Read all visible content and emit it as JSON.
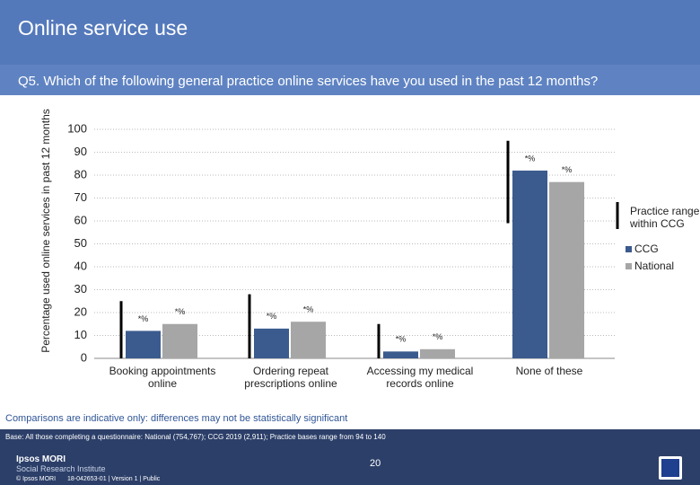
{
  "header": {
    "title": "Online service use"
  },
  "chart_data": {
    "type": "bar",
    "title": "Q5. Which of the following general practice online services have you used in the past 12 months?",
    "y_label": "Percentage used online services in past 12 months",
    "categories": [
      "Booking appointments online",
      "Ordering repeat prescriptions online",
      "Accessing my medical records online",
      "None of these"
    ],
    "series": [
      {
        "name": "CCG",
        "color": "#3b5b8e",
        "values": [
          12,
          13,
          3,
          82
        ],
        "value_labels": [
          "*%",
          "*%",
          "*%",
          "*%"
        ]
      },
      {
        "name": "National",
        "color": "#a6a6a6",
        "values": [
          15,
          16,
          4,
          77
        ],
        "value_labels": [
          "*%",
          "*%",
          "*%",
          "*%"
        ]
      }
    ],
    "range": {
      "name": "Practice range within CCG",
      "color": "#000000",
      "low": [
        0,
        0,
        0,
        59
      ],
      "high": [
        25,
        28,
        15,
        95
      ]
    },
    "ylim": [
      0,
      100
    ],
    "yticks": [
      0,
      10,
      20,
      30,
      40,
      50,
      60,
      70,
      80,
      90,
      100
    ],
    "grid": true,
    "legend": "right"
  },
  "footer": {
    "note": "Comparisons are indicative only: differences may not be statistically significant",
    "base": "Base: All those completing a questionnaire: National (754,767); CCG 2019 (2,911); Practice bases range from 94 to 140",
    "logo": "Ipsos MORI",
    "logo_sub": "Social Research Institute",
    "page": "20",
    "copyright": "© Ipsos MORI",
    "job": "18-042653-01 | Version 1 | Public"
  }
}
